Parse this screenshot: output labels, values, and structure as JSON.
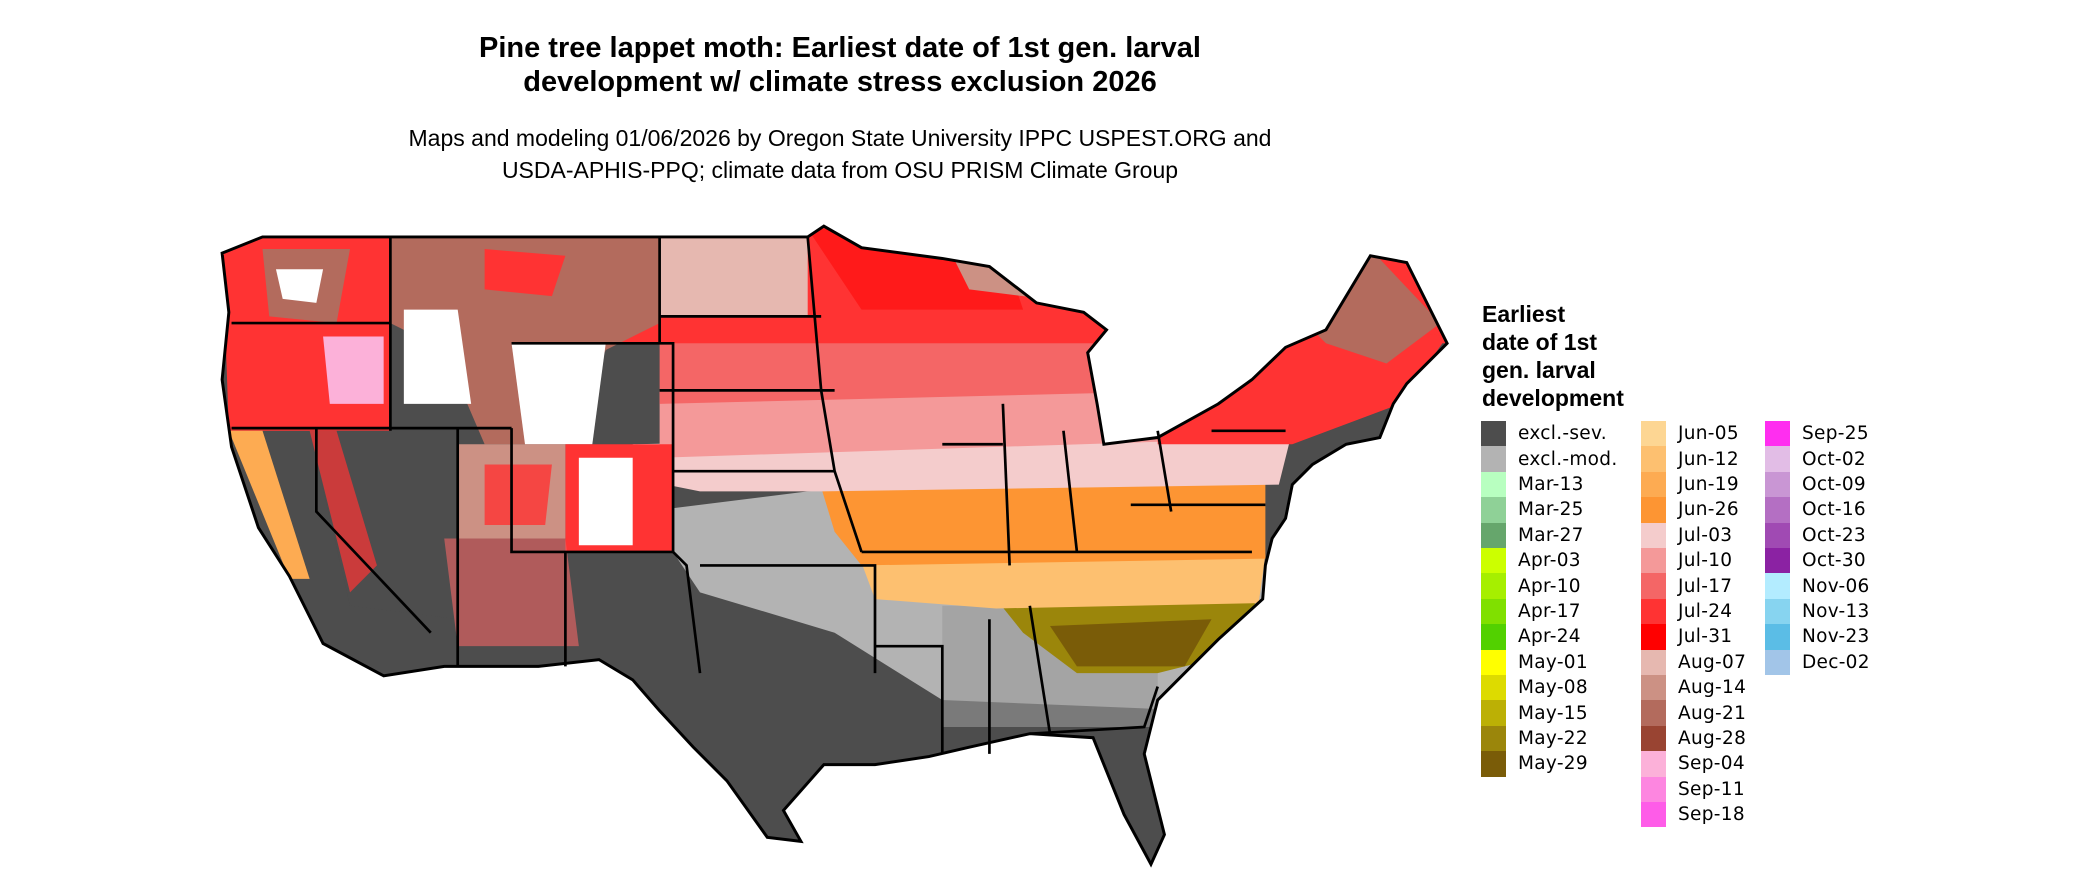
{
  "title": {
    "line1": "Pine tree lappet moth: Earliest date of 1st gen. larval",
    "line2": "development w/ climate stress exclusion 2026"
  },
  "subtitle": {
    "line1": "Maps and modeling 01/06/2026 by Oregon State University IPPC USPEST.ORG and",
    "line2": "USDA-APHIS-PPQ; climate data from OSU PRISM Climate Group"
  },
  "legend": {
    "title_lines": [
      "Earliest",
      "date of 1st",
      "gen. larval",
      "development"
    ],
    "items": [
      {
        "label": "excl.-sev.",
        "color": "#4d4d4d"
      },
      {
        "label": "excl.-mod.",
        "color": "#b3b3b3"
      },
      {
        "label": "Mar-13",
        "color": "#b8ffc0"
      },
      {
        "label": "Mar-25",
        "color": "#8fd197"
      },
      {
        "label": "Mar-27",
        "color": "#66a66c"
      },
      {
        "label": "Apr-03",
        "color": "#ccff00"
      },
      {
        "label": "Apr-10",
        "color": "#a6ef00"
      },
      {
        "label": "Apr-17",
        "color": "#80e000"
      },
      {
        "label": "Apr-24",
        "color": "#52d100"
      },
      {
        "label": "May-01",
        "color": "#ffff00"
      },
      {
        "label": "May-08",
        "color": "#dddb00"
      },
      {
        "label": "May-15",
        "color": "#bcb005"
      },
      {
        "label": "May-22",
        "color": "#9b860b"
      },
      {
        "label": "May-29",
        "color": "#7a5c08"
      },
      {
        "label": "Jun-05",
        "color": "#fdd693"
      },
      {
        "label": "Jun-12",
        "color": "#fdc070"
      },
      {
        "label": "Jun-19",
        "color": "#fdab52"
      },
      {
        "label": "Jun-26",
        "color": "#fd9533"
      },
      {
        "label": "Jul-03",
        "color": "#f4cccc"
      },
      {
        "label": "Jul-10",
        "color": "#f49999"
      },
      {
        "label": "Jul-17",
        "color": "#f46666"
      },
      {
        "label": "Jul-24",
        "color": "#ff3333"
      },
      {
        "label": "Jul-31",
        "color": "#ff0000"
      },
      {
        "label": "Aug-07",
        "color": "#e6b8b0"
      },
      {
        "label": "Aug-14",
        "color": "#cc9184"
      },
      {
        "label": "Aug-21",
        "color": "#b36b5d"
      },
      {
        "label": "Aug-28",
        "color": "#994432"
      },
      {
        "label": "Sep-04",
        "color": "#fcb1d9"
      },
      {
        "label": "Sep-11",
        "color": "#fd86e0"
      },
      {
        "label": "Sep-18",
        "color": "#fe5ce8"
      },
      {
        "label": "Sep-25",
        "color": "#ff2ef0"
      },
      {
        "label": "Oct-02",
        "color": "#e2bde6"
      },
      {
        "label": "Oct-09",
        "color": "#c996d4"
      },
      {
        "label": "Oct-16",
        "color": "#b46fc3"
      },
      {
        "label": "Oct-23",
        "color": "#a04ab3"
      },
      {
        "label": "Oct-30",
        "color": "#8b22a3"
      },
      {
        "label": "Nov-06",
        "color": "#b3ecff"
      },
      {
        "label": "Nov-13",
        "color": "#87d4f0"
      },
      {
        "label": "Nov-23",
        "color": "#5bbde6"
      },
      {
        "label": "Dec-02",
        "color": "#a2c5e8"
      }
    ]
  }
}
